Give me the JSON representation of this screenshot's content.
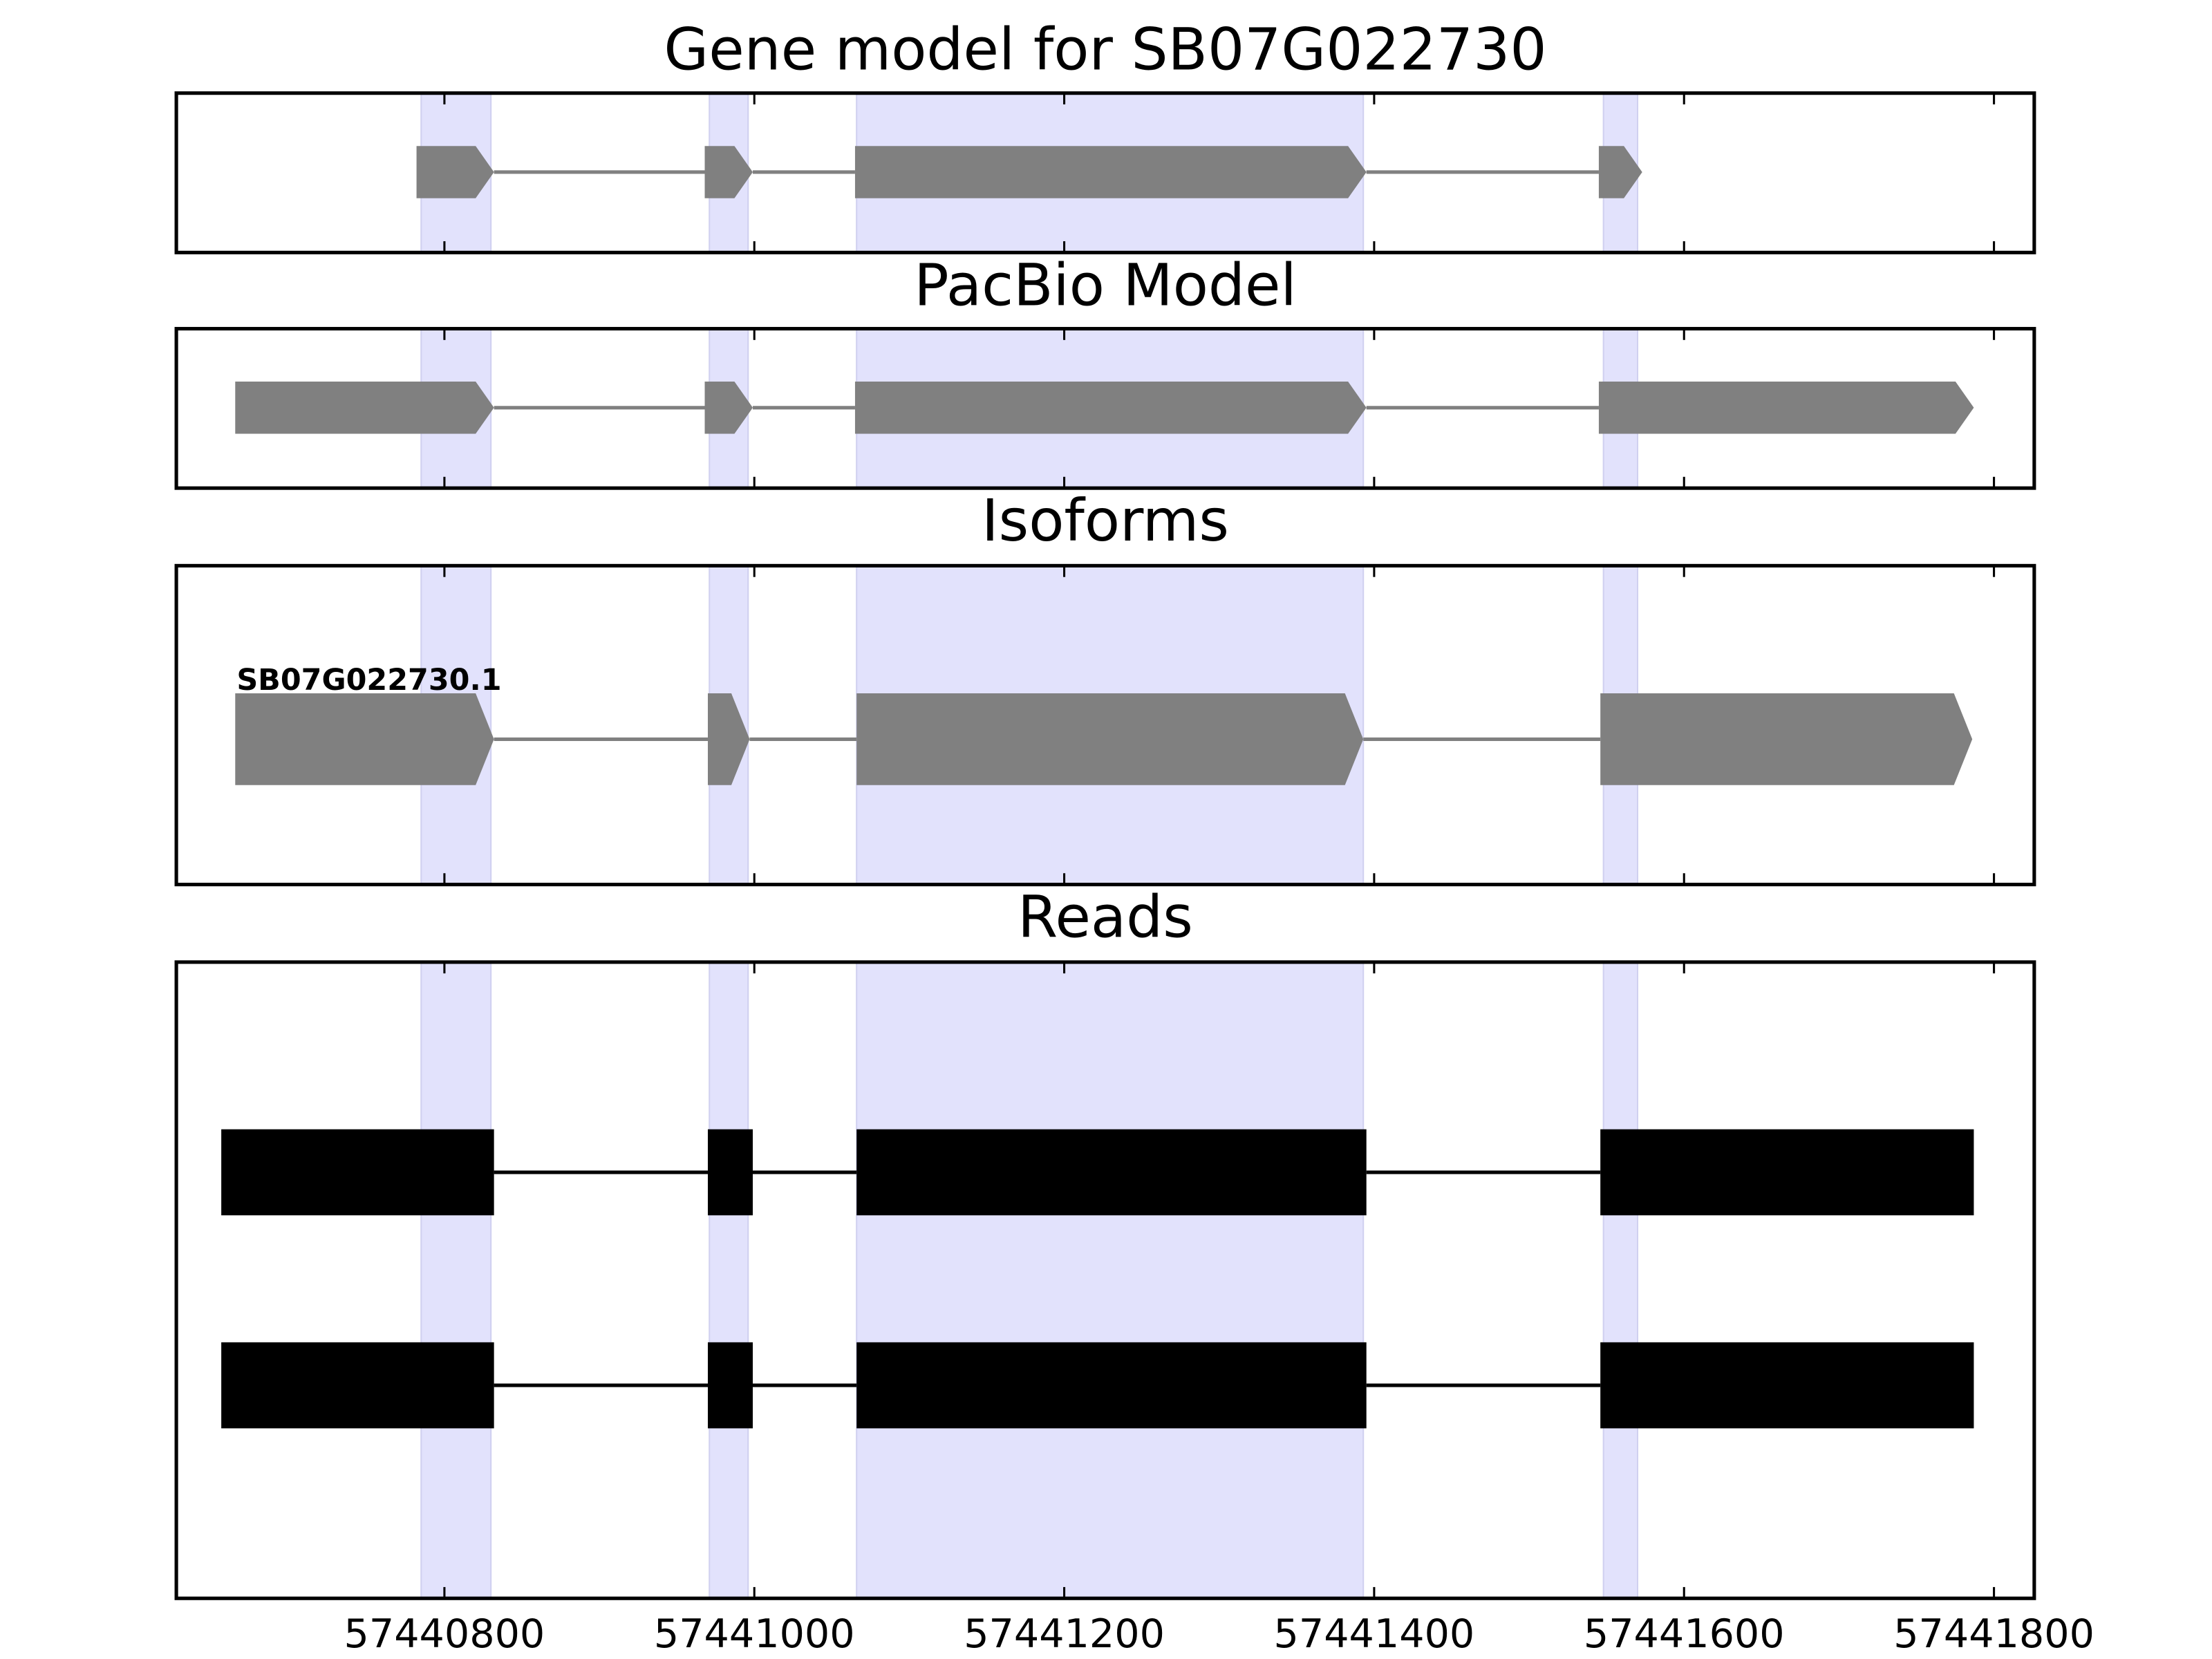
{
  "chart_data": {
    "type": "gene-tracks",
    "xlim": [
      57440627,
      57441826
    ],
    "xticks": [
      57440800,
      57441000,
      57441200,
      57441400,
      57441600,
      57441800
    ],
    "highlight_color": "#e2e2fc",
    "highlights": [
      [
        57440785,
        57440830
      ],
      [
        57440971,
        57440996
      ],
      [
        57441066,
        57441393
      ],
      [
        57441548,
        57441570
      ]
    ],
    "panels": [
      {
        "title": "Gene model for SB07G022730",
        "style": "arrow",
        "color": "#808080",
        "features": [
          {
            "exons": [
              [
                57440782,
                57440832
              ],
              [
                57440968,
                57440999
              ],
              [
                57441065,
                57441395
              ],
              [
                57441545,
                57441573
              ]
            ]
          }
        ]
      },
      {
        "title": "PacBio Model",
        "style": "arrow",
        "color": "#808080",
        "features": [
          {
            "exons": [
              [
                57440665,
                57440832
              ],
              [
                57440968,
                57440999
              ],
              [
                57441065,
                57441395
              ],
              [
                57441545,
                57441787
              ]
            ]
          }
        ]
      },
      {
        "title": "Isoforms",
        "style": "arrow",
        "color": "#808080",
        "features": [
          {
            "name": "SB07G022730.1",
            "exons": [
              [
                57440665,
                57440832
              ],
              [
                57440970,
                57440997
              ],
              [
                57441066,
                57441393
              ],
              [
                57441546,
                57441786
              ]
            ]
          }
        ]
      },
      {
        "title": "Reads",
        "style": "block",
        "color": "#000000",
        "features": [
          {
            "exons": [
              [
                57440656,
                57440832
              ],
              [
                57440970,
                57440999
              ],
              [
                57441066,
                57441395
              ],
              [
                57441546,
                57441787
              ]
            ]
          },
          {
            "exons": [
              [
                57440656,
                57440832
              ],
              [
                57440970,
                57440999
              ],
              [
                57441066,
                57441395
              ],
              [
                57441546,
                57441787
              ]
            ]
          }
        ]
      }
    ]
  }
}
